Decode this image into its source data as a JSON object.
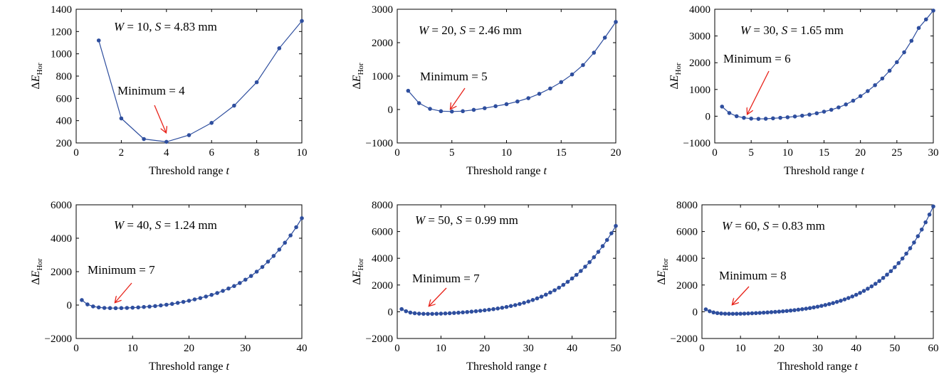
{
  "line_color": "#2E4E9E",
  "arrow_color": "#E8231A",
  "chart_data": [
    {
      "type": "line",
      "title_text": "W = 10, S = 4.83 mm",
      "title_parts": {
        "w_var": "W",
        "w_eq": " = 10, ",
        "s_var": "S",
        "s_eq": " = 4.83 mm"
      },
      "xlabel": "Threshold range",
      "xlabel_var": "t",
      "ylabel": "ΔE",
      "ylabel_sub": "Hor",
      "xlim": [
        0,
        10
      ],
      "ylim": [
        200,
        1400
      ],
      "xticks": [
        0,
        2,
        4,
        6,
        8,
        10
      ],
      "yticks": [
        200,
        400,
        600,
        800,
        1000,
        1200,
        1400
      ],
      "ytick_labels": [
        "200",
        "400",
        "600",
        "800",
        "1000",
        "1200",
        "1400"
      ],
      "annotation": {
        "text": "Minimum = 4",
        "x": 4
      },
      "x": [
        1,
        2,
        3,
        4,
        5,
        6,
        7,
        8,
        9,
        10
      ],
      "y": [
        1120,
        420,
        235,
        210,
        270,
        380,
        535,
        745,
        1050,
        1295
      ]
    },
    {
      "type": "line",
      "title_text": "W = 20, S = 2.46 mm",
      "title_parts": {
        "w_var": "W",
        "w_eq": " = 20, ",
        "s_var": "S",
        "s_eq": " = 2.46 mm"
      },
      "xlabel": "Threshold range",
      "xlabel_var": "t",
      "ylabel": "ΔE",
      "ylabel_sub": "Hor",
      "xlim": [
        0,
        20
      ],
      "ylim": [
        -1000,
        3000
      ],
      "xticks": [
        0,
        5,
        10,
        15,
        20
      ],
      "yticks": [
        -1000,
        0,
        1000,
        2000,
        3000
      ],
      "ytick_labels": [
        "−1000",
        "0",
        "1000",
        "2000",
        "3000"
      ],
      "annotation": {
        "text": "Minimum = 5",
        "x": 5
      },
      "x": [
        1,
        2,
        3,
        4,
        5,
        6,
        7,
        8,
        9,
        10,
        11,
        12,
        13,
        14,
        15,
        16,
        17,
        18,
        19,
        20
      ],
      "y": [
        560,
        190,
        20,
        -50,
        -60,
        -50,
        -10,
        40,
        100,
        160,
        240,
        340,
        470,
        630,
        820,
        1050,
        1330,
        1700,
        2150,
        2620
      ]
    },
    {
      "type": "line",
      "title_text": "W = 30, S = 1.65 mm",
      "title_parts": {
        "w_var": "W",
        "w_eq": " = 30, ",
        "s_var": "S",
        "s_eq": " = 1.65 mm"
      },
      "xlabel": "Threshold range",
      "xlabel_var": "t",
      "ylabel": "ΔE",
      "ylabel_sub": "Hor",
      "xlim": [
        0,
        30
      ],
      "ylim": [
        -1000,
        4000
      ],
      "xticks": [
        0,
        5,
        10,
        15,
        20,
        25,
        30
      ],
      "yticks": [
        -1000,
        0,
        1000,
        2000,
        3000,
        4000
      ],
      "ytick_labels": [
        "−1000",
        "0",
        "1000",
        "2000",
        "3000",
        "4000"
      ],
      "annotation": {
        "text": "Minimum = 6",
        "x": 6
      },
      "x": [
        1,
        2,
        3,
        4,
        5,
        6,
        7,
        8,
        9,
        10,
        11,
        12,
        13,
        14,
        15,
        16,
        17,
        18,
        19,
        20,
        21,
        22,
        23,
        24,
        25,
        26,
        27,
        28,
        29,
        30
      ],
      "y": [
        360,
        120,
        0,
        -60,
        -90,
        -100,
        -95,
        -80,
        -60,
        -40,
        -10,
        20,
        60,
        110,
        170,
        240,
        330,
        440,
        580,
        750,
        940,
        1160,
        1410,
        1700,
        2020,
        2390,
        2820,
        3300,
        3620,
        3950
      ]
    },
    {
      "type": "line",
      "title_text": "W = 40, S = 1.24 mm",
      "title_parts": {
        "w_var": "W",
        "w_eq": " = 40, ",
        "s_var": "S",
        "s_eq": " = 1.24 mm"
      },
      "xlabel": "Threshold range",
      "xlabel_var": "t",
      "ylabel": "ΔE",
      "ylabel_sub": "Hor",
      "xlim": [
        0,
        40
      ],
      "ylim": [
        -2000,
        6000
      ],
      "xticks": [
        0,
        10,
        20,
        30,
        40
      ],
      "yticks": [
        -2000,
        0,
        2000,
        4000,
        6000
      ],
      "ytick_labels": [
        "−2000",
        "0",
        "2000",
        "4000",
        "6000"
      ],
      "annotation": {
        "text": "Minimum = 7",
        "x": 7
      },
      "x": [
        1,
        2,
        3,
        4,
        5,
        6,
        7,
        8,
        9,
        10,
        11,
        12,
        13,
        14,
        15,
        16,
        17,
        18,
        19,
        20,
        21,
        22,
        23,
        24,
        25,
        26,
        27,
        28,
        29,
        30,
        31,
        32,
        33,
        34,
        35,
        36,
        37,
        38,
        39,
        40
      ],
      "y": [
        300,
        40,
        -80,
        -140,
        -170,
        -180,
        -185,
        -180,
        -170,
        -155,
        -140,
        -115,
        -90,
        -60,
        -20,
        20,
        70,
        130,
        190,
        260,
        340,
        420,
        510,
        610,
        720,
        850,
        990,
        1140,
        1320,
        1520,
        1740,
        2000,
        2280,
        2600,
        2940,
        3320,
        3730,
        4170,
        4660,
        5200
      ]
    },
    {
      "type": "line",
      "title_text": "W = 50, S = 0.99 mm",
      "title_parts": {
        "w_var": "W",
        "w_eq": " = 50, ",
        "s_var": "S",
        "s_eq": " = 0.99 mm"
      },
      "xlabel": "Threshold range",
      "xlabel_var": "t",
      "ylabel": "ΔE",
      "ylabel_sub": "Hor",
      "xlim": [
        0,
        50
      ],
      "ylim": [
        -2000,
        8000
      ],
      "xticks": [
        0,
        10,
        20,
        30,
        40,
        50
      ],
      "yticks": [
        -2000,
        0,
        2000,
        4000,
        6000,
        8000
      ],
      "ytick_labels": [
        "−2000",
        "0",
        "2000",
        "4000",
        "6000",
        "8000"
      ],
      "annotation": {
        "text": "Minimum = 7",
        "x": 7
      },
      "x": [
        1,
        2,
        3,
        4,
        5,
        6,
        7,
        8,
        9,
        10,
        11,
        12,
        13,
        14,
        15,
        16,
        17,
        18,
        19,
        20,
        21,
        22,
        23,
        24,
        25,
        26,
        27,
        28,
        29,
        30,
        31,
        32,
        33,
        34,
        35,
        36,
        37,
        38,
        39,
        40,
        41,
        42,
        43,
        44,
        45,
        46,
        47,
        48,
        49,
        50
      ],
      "y": [
        200,
        40,
        -60,
        -110,
        -140,
        -155,
        -160,
        -158,
        -150,
        -140,
        -125,
        -110,
        -90,
        -70,
        -45,
        -20,
        10,
        40,
        75,
        110,
        150,
        195,
        245,
        300,
        360,
        430,
        500,
        580,
        670,
        770,
        880,
        1000,
        1130,
        1280,
        1440,
        1610,
        1800,
        2010,
        2240,
        2490,
        2760,
        3050,
        3370,
        3710,
        4080,
        4480,
        4910,
        5370,
        5870,
        6420
      ]
    },
    {
      "type": "line",
      "title_text": "W = 60, S = 0.83 mm",
      "title_parts": {
        "w_var": "W",
        "w_eq": " = 60, ",
        "s_var": "S",
        "s_eq": " = 0.83 mm"
      },
      "xlabel": "Threshold range",
      "xlabel_var": "t",
      "ylabel": "ΔE",
      "ylabel_sub": "Hor",
      "xlim": [
        0,
        60
      ],
      "ylim": [
        -2000,
        8000
      ],
      "xticks": [
        0,
        10,
        20,
        30,
        40,
        50,
        60
      ],
      "yticks": [
        -2000,
        0,
        2000,
        4000,
        6000,
        8000
      ],
      "ytick_labels": [
        "−2000",
        "0",
        "2000",
        "4000",
        "6000",
        "8000"
      ],
      "annotation": {
        "text": "Minimum = 8",
        "x": 8
      },
      "x": [
        1,
        2,
        3,
        4,
        5,
        6,
        7,
        8,
        9,
        10,
        11,
        12,
        13,
        14,
        15,
        16,
        17,
        18,
        19,
        20,
        21,
        22,
        23,
        24,
        25,
        26,
        27,
        28,
        29,
        30,
        31,
        32,
        33,
        34,
        35,
        36,
        37,
        38,
        39,
        40,
        41,
        42,
        43,
        44,
        45,
        46,
        47,
        48,
        49,
        50,
        51,
        52,
        53,
        54,
        55,
        56,
        57,
        58,
        59,
        60
      ],
      "y": [
        180,
        40,
        -50,
        -100,
        -130,
        -145,
        -150,
        -152,
        -150,
        -145,
        -138,
        -128,
        -115,
        -100,
        -85,
        -68,
        -50,
        -30,
        -10,
        10,
        35,
        60,
        90,
        120,
        155,
        190,
        230,
        275,
        325,
        380,
        440,
        505,
        575,
        650,
        735,
        825,
        925,
        1030,
        1145,
        1270,
        1410,
        1560,
        1725,
        1900,
        2090,
        2300,
        2530,
        2775,
        3040,
        3330,
        3640,
        3980,
        4350,
        4750,
        5180,
        5650,
        6150,
        6690,
        7270,
        7880
      ]
    }
  ]
}
